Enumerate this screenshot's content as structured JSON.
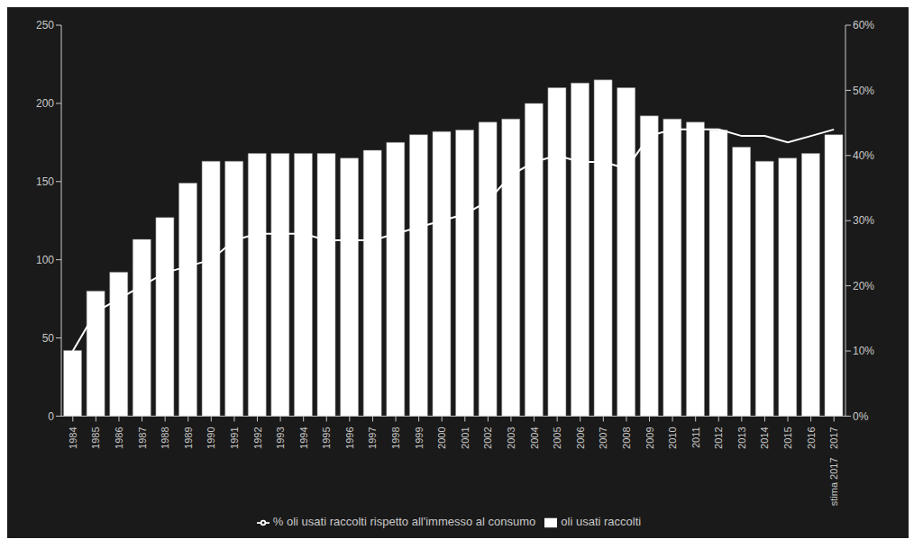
{
  "chart_data": {
    "type": "bar",
    "categories": [
      "1984",
      "1985",
      "1986",
      "1987",
      "1988",
      "1989",
      "1990",
      "1991",
      "1992",
      "1993",
      "1994",
      "1995",
      "1996",
      "1997",
      "1998",
      "1999",
      "2000",
      "2001",
      "2002",
      "2003",
      "2004",
      "2005",
      "2006",
      "2007",
      "2008",
      "2009",
      "2010",
      "2011",
      "2012",
      "2013",
      "2014",
      "2015",
      "2016",
      "2017"
    ],
    "series": [
      {
        "name": "oli usati raccolti",
        "type": "bar",
        "color": "#ffffff",
        "values": [
          42,
          80,
          92,
          113,
          127,
          149,
          163,
          163,
          168,
          168,
          168,
          168,
          165,
          170,
          175,
          180,
          182,
          183,
          188,
          190,
          200,
          210,
          213,
          215,
          210,
          192,
          190,
          188,
          183,
          172,
          163,
          165,
          168,
          180
        ]
      },
      {
        "name": "% oli usati raccolti rispetto all'immesso al consumo",
        "type": "line",
        "color": "#ffffff",
        "axis": "y2",
        "values": [
          0.1,
          0.16,
          0.18,
          0.2,
          0.22,
          0.23,
          0.24,
          0.27,
          0.28,
          0.28,
          0.28,
          0.27,
          0.27,
          0.27,
          0.28,
          0.29,
          0.3,
          0.31,
          0.33,
          0.37,
          0.39,
          0.4,
          0.39,
          0.39,
          0.38,
          0.43,
          0.44,
          0.44,
          0.44,
          0.43,
          0.43,
          0.42,
          0.43,
          0.44
        ]
      }
    ],
    "ylim": [
      0,
      250
    ],
    "yticks": [
      0,
      50,
      100,
      150,
      200,
      250
    ],
    "y2lim": [
      0,
      0.6
    ],
    "y2ticks": [
      {
        "value": 0,
        "label": "0%"
      },
      {
        "value": 0.1,
        "label": "10%"
      },
      {
        "value": 0.2,
        "label": "20%"
      },
      {
        "value": 0.3,
        "label": "30%"
      },
      {
        "value": 0.4,
        "label": "40%"
      },
      {
        "value": 0.5,
        "label": "50%"
      },
      {
        "value": 0.6,
        "label": "60%"
      }
    ],
    "annotations": [
      {
        "text": "stima 2017",
        "x": "2017"
      }
    ],
    "legend": "bottom",
    "grid": false
  }
}
